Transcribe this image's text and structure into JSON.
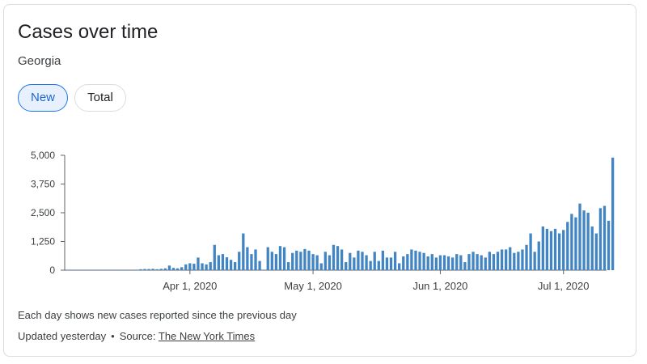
{
  "card": {
    "title": "Cases over time",
    "subtitle": "Georgia",
    "chips": {
      "new": "New",
      "total": "Total"
    },
    "footnote": "Each day shows new cases reported since the previous day",
    "updated_text": "Updated yesterday",
    "separator": "•",
    "source_prefix": "Source:",
    "source_link": "The New York Times"
  },
  "colors": {
    "bar": "#4285c4",
    "axis": "#5f6368",
    "chip_active_bg": "#e8f0fe",
    "chip_active_border": "#1a73e8"
  },
  "chart_data": {
    "type": "bar",
    "title": "Cases over time",
    "subtitle": "Georgia",
    "ylim": [
      0,
      5000
    ],
    "yticks": [
      "5,000",
      "3,750",
      "2,500",
      "1,250",
      "0"
    ],
    "ytick_values": [
      5000,
      3750,
      2500,
      1250,
      0
    ],
    "xtick_labels": [
      "Apr 1, 2020",
      "May 1, 2020",
      "Jun 1, 2020",
      "Jul 1, 2020"
    ],
    "xtick_dates": [
      "2020-04-01",
      "2020-05-01",
      "2020-06-01",
      "2020-07-01"
    ],
    "start_date": "2020-03-02",
    "end_date": "2020-07-11",
    "series": [
      {
        "values": [
          0,
          0,
          0,
          0,
          0,
          0,
          0,
          0,
          0,
          0,
          0,
          0,
          0,
          0,
          0,
          0,
          0,
          0,
          40,
          50,
          50,
          60,
          40,
          60,
          80,
          200,
          100,
          80,
          130,
          250,
          300,
          280,
          550,
          300,
          250,
          350,
          1100,
          650,
          700,
          560,
          450,
          350,
          800,
          1600,
          1000,
          700,
          900,
          400,
          0,
          1000,
          800,
          700,
          1050,
          1000,
          350,
          750,
          850,
          800,
          920,
          850,
          700,
          650,
          300,
          800,
          650,
          1100,
          1050,
          900,
          350,
          750,
          550,
          850,
          800,
          650,
          400,
          800,
          400,
          850,
          550,
          550,
          800,
          300,
          600,
          700,
          900,
          850,
          800,
          750,
          600,
          700,
          550,
          650,
          650,
          600,
          550,
          700,
          650,
          350,
          700,
          800,
          700,
          650,
          550,
          800,
          700,
          800,
          900,
          900,
          1000,
          750,
          800,
          900,
          1100,
          1600,
          800,
          1250,
          1900,
          1800,
          1700,
          1800,
          1600,
          1750,
          2100,
          2450,
          2300,
          2900,
          2600,
          2500,
          1900,
          1600,
          2700,
          2800,
          2150,
          4900
        ]
      }
    ]
  }
}
